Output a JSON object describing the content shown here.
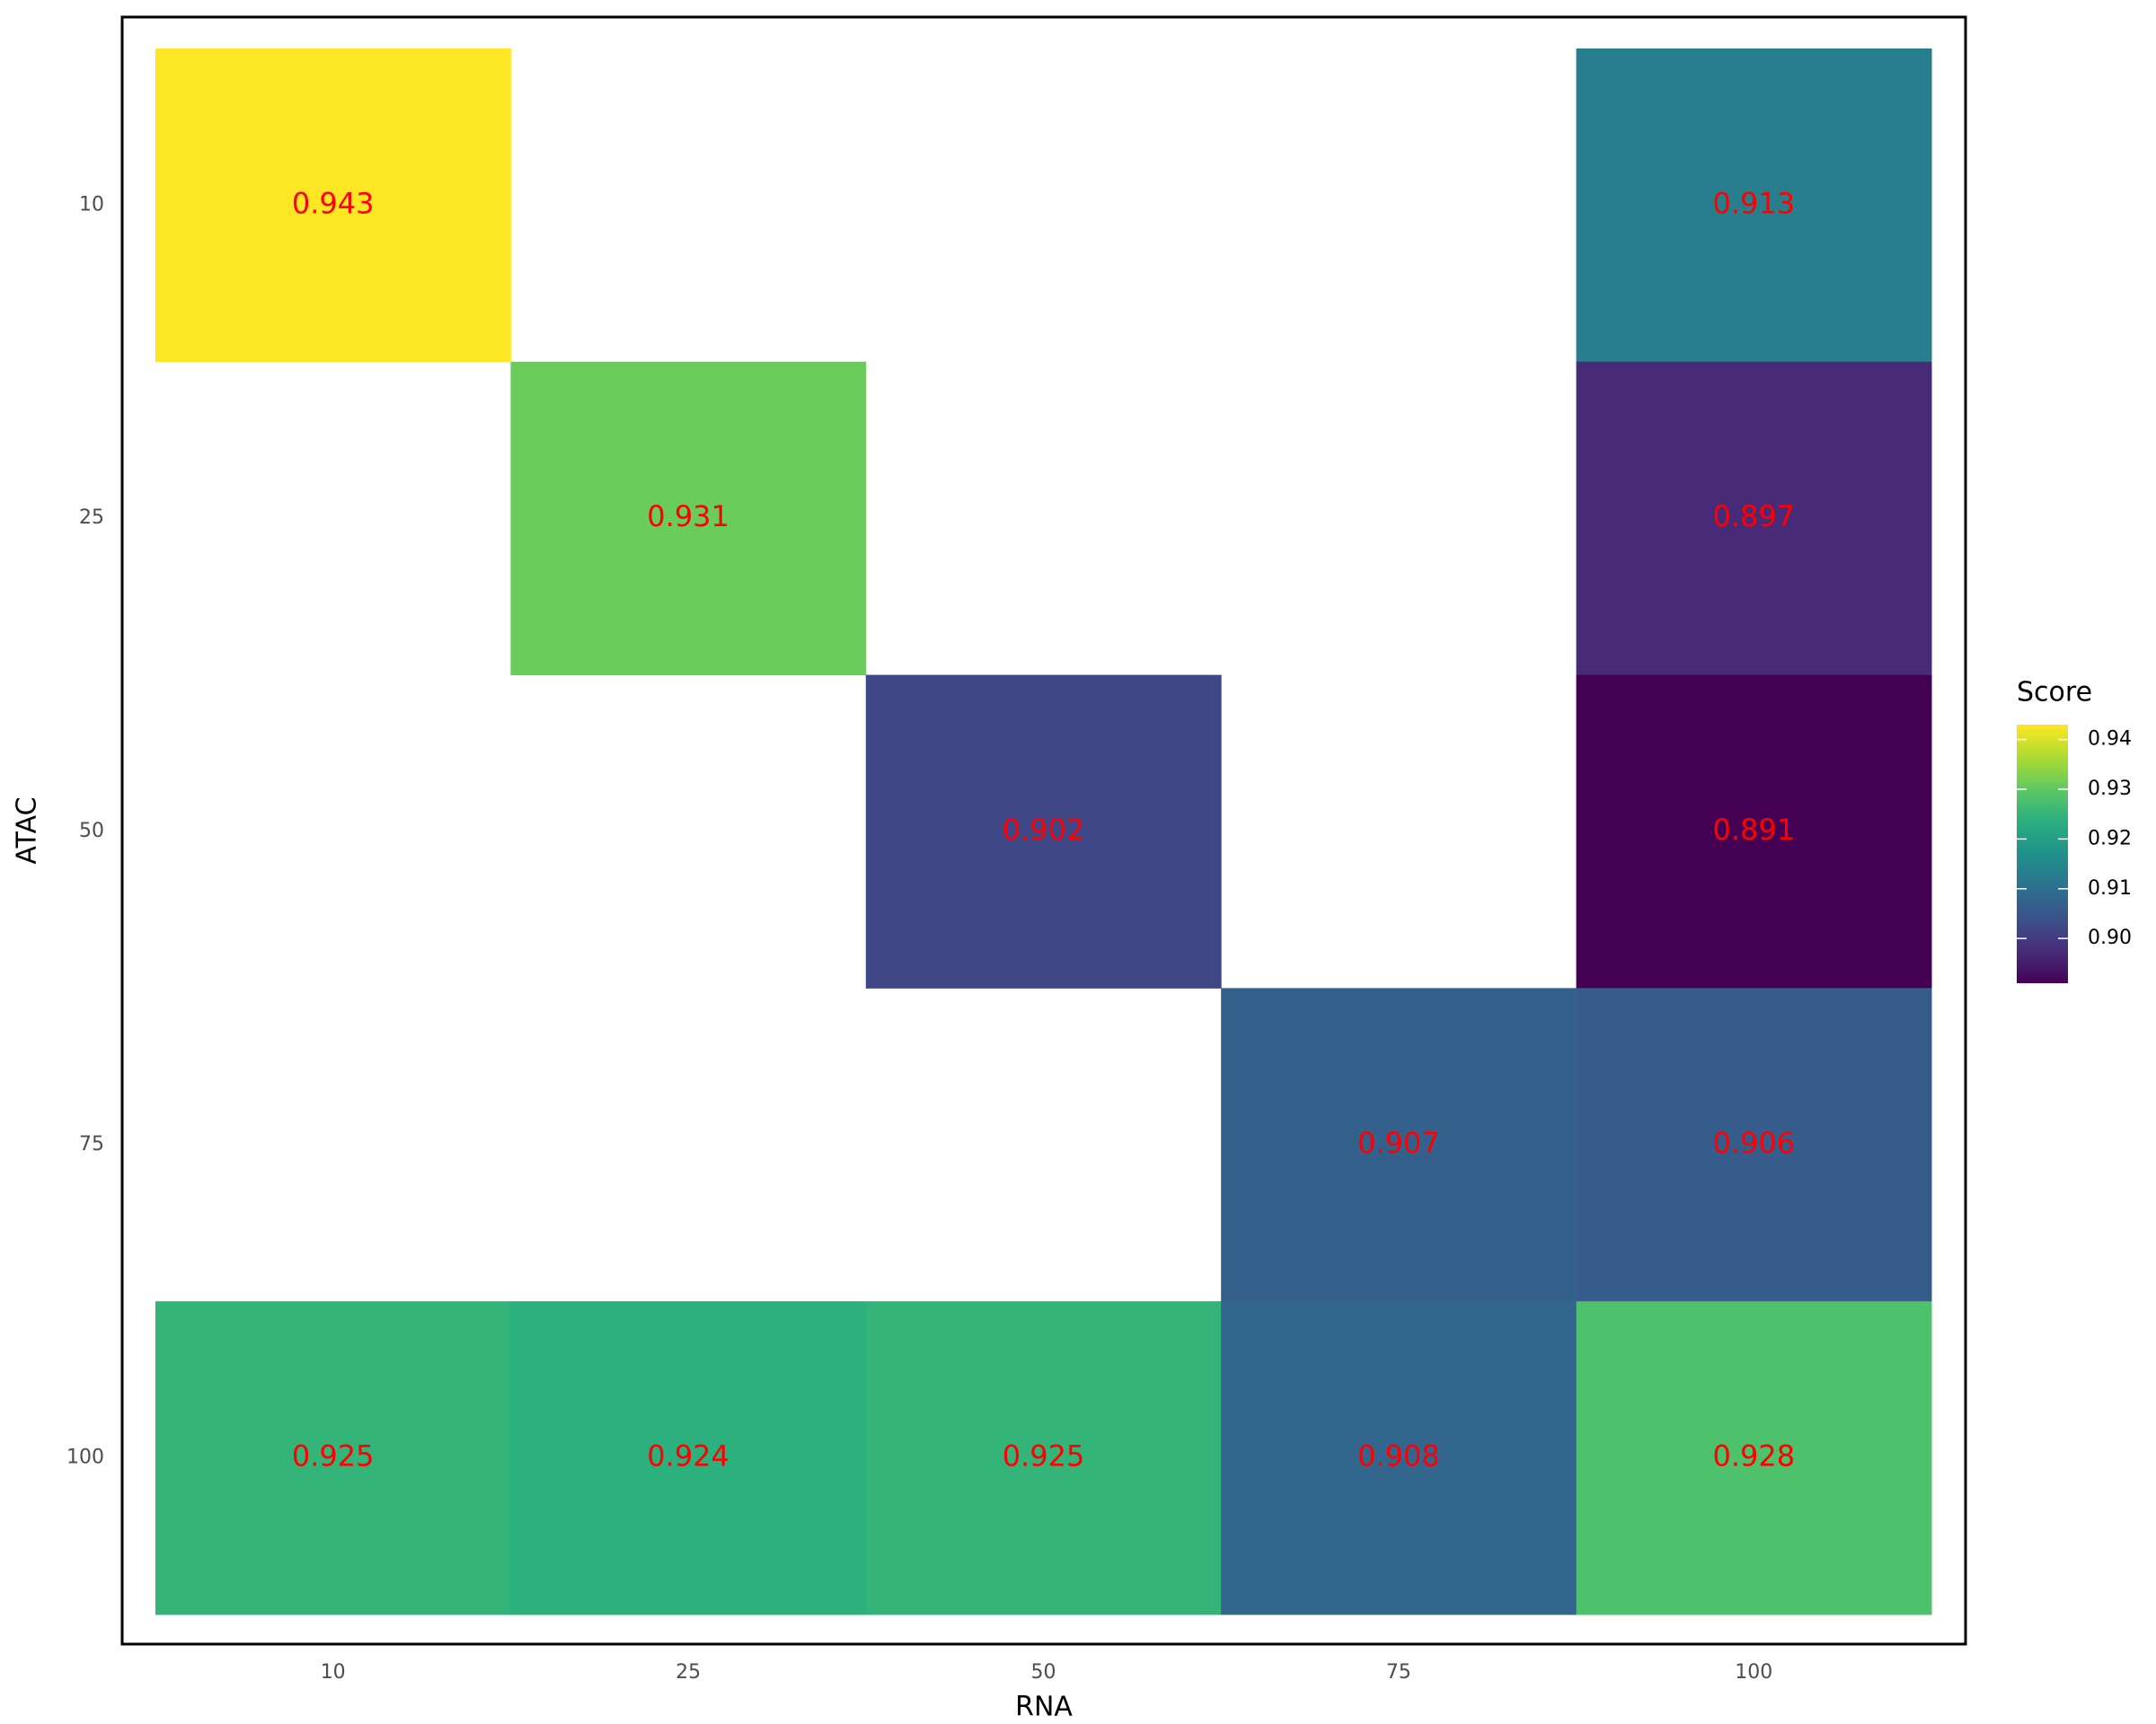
{
  "chart_data": {
    "type": "heatmap",
    "xlabel": "RNA",
    "ylabel": "ATAC",
    "legend_title": "Score",
    "x_categories": [
      "10",
      "25",
      "50",
      "75",
      "100"
    ],
    "y_categories": [
      "10",
      "25",
      "50",
      "75",
      "100"
    ],
    "values": [
      [
        0.943,
        null,
        null,
        null,
        0.913
      ],
      [
        null,
        0.931,
        null,
        null,
        0.897
      ],
      [
        null,
        null,
        0.902,
        null,
        0.891
      ],
      [
        null,
        null,
        null,
        0.907,
        0.906
      ],
      [
        0.925,
        0.924,
        0.925,
        0.908,
        0.928
      ]
    ],
    "colormap": "viridis",
    "clim": [
      0.891,
      0.943
    ],
    "cticks": [
      {
        "value": 0.9,
        "label": "0.90"
      },
      0.91,
      0.92,
      0.93,
      0.94
    ],
    "label_color": "#ff0000"
  }
}
